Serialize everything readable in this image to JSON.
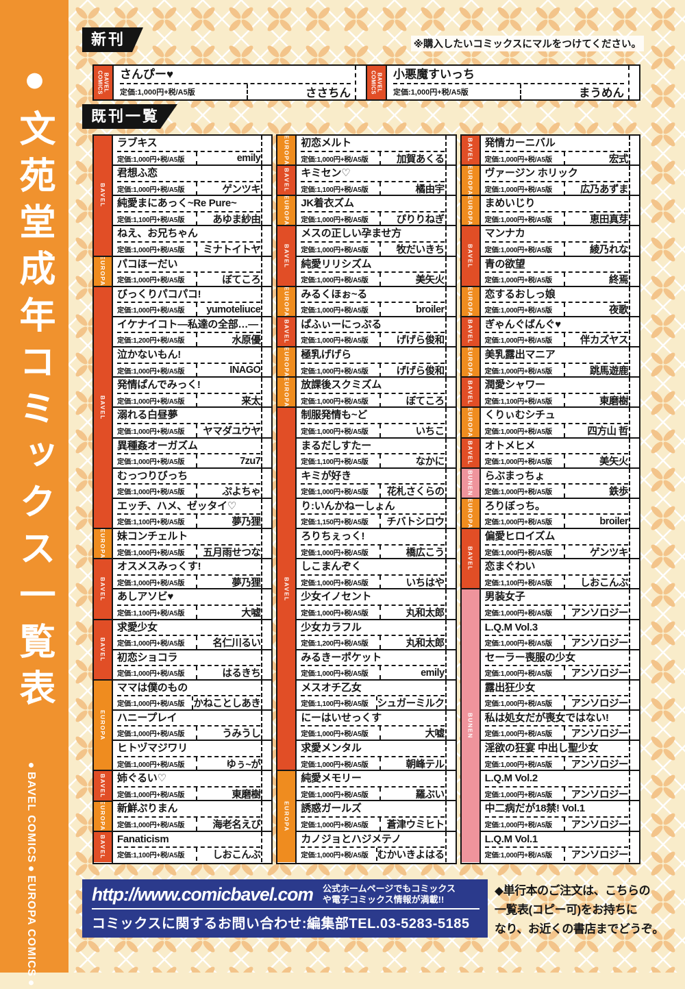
{
  "sidebar": {
    "title": "●文苑堂成年コミックス一覧表",
    "subtitle": "●BAVEL COMICS●EUROPA COMICS●"
  },
  "header": {
    "new_label": "新刊",
    "note": "※購入したいコミックスにマルをつけてください。",
    "backlist_label": "既刊一覧"
  },
  "new_releases": [
    {
      "tag": "BAVEL COMICS",
      "title": "さんぴー♥",
      "price": "定価:1,000円+税/A5版",
      "artist": "ささちん"
    },
    {
      "tag": "BAVEL COMICS",
      "title": "小悪魔すいっち",
      "price": "定価:1,000円+税/A5版",
      "artist": "まうめん"
    }
  ],
  "columns": [
    {
      "groups": [
        {
          "label": "BAVEL",
          "rows": 4
        },
        {
          "label": "EUROPA",
          "rows": 1
        },
        {
          "label": "BAVEL",
          "rows": 8
        },
        {
          "label": "EUROPA",
          "rows": 1
        },
        {
          "label": "BAVEL",
          "rows": 2
        },
        {
          "label": "BAVEL",
          "rows": 2
        },
        {
          "label": "EUROPA",
          "rows": 3
        },
        {
          "label": "BAVEL",
          "rows": 1
        },
        {
          "label": "EUROPA",
          "rows": 1
        },
        {
          "label": "BAVEL",
          "rows": 1
        }
      ],
      "entries": [
        {
          "title": "ラブキス",
          "price": "定価:1,000円+税/A5版",
          "artist": "emily"
        },
        {
          "title": "君想ふ恋",
          "price": "定価:1,000円+税/A5版",
          "artist": "ゲンツキ"
        },
        {
          "title": "純愛まにあっく~Re Pure~",
          "price": "定価:1,100円+税/A5版",
          "artist": "あゆま紗由"
        },
        {
          "title": "ねえ、お兄ちゃん",
          "price": "定価:1,000円+税/A5版",
          "artist": "ミナトイトヤ"
        },
        {
          "title": "パコほーだい",
          "price": "定価:1,000円+税/A5版",
          "artist": "ぼてころ"
        },
        {
          "title": "びっくりパコパコ!",
          "price": "定価:1,000円+税/A5版",
          "artist": "yumoteliuce"
        },
        {
          "title": "イケナイコト―私達の全部…―",
          "price": "定価:1,200円+税/A5版",
          "artist": "水原優"
        },
        {
          "title": "泣かないもん!",
          "price": "定価:1,000円+税/A5版",
          "artist": "INAGO"
        },
        {
          "title": "発情ぱんでみっく!",
          "price": "定価:1,000円+税/A5版",
          "artist": "来太"
        },
        {
          "title": "溺れる白昼夢",
          "price": "定価:1,000円+税/A5版",
          "artist": "ヤマダユウヤ"
        },
        {
          "title": "異種姦オーガズム",
          "price": "定価:1,000円+税/A5版",
          "artist": "7zu7"
        },
        {
          "title": "むっつりびっち",
          "price": "定価:1,000円+税/A5版",
          "artist": "ぷよちゃ"
        },
        {
          "title": "エッチ、ハメ、ゼッタイ♡",
          "price": "定価:1,100円+税/A5版",
          "artist": "夢乃狸"
        },
        {
          "title": "妹コンチェルト",
          "price": "定価:1,000円+税/A5版",
          "artist": "五月雨せつな"
        },
        {
          "title": "オスメスみっくす!",
          "price": "定価:1,000円+税/A5版",
          "artist": "夢乃狸"
        },
        {
          "title": "あしアソビ♥",
          "price": "定価:1,100円+税/A5版",
          "artist": "大嘘"
        },
        {
          "title": "求愛少女",
          "price": "定価:1,000円+税/A5版",
          "artist": "名仁川るい"
        },
        {
          "title": "初恋ショコラ",
          "price": "定価:1,000円+税/A5版",
          "artist": "はるきち"
        },
        {
          "title": "ママは僕のもの",
          "price": "定価:1,000円+税/A5版",
          "artist": "かねことしあき"
        },
        {
          "title": "ハニープレイ",
          "price": "定価:1,000円+税/A5版",
          "artist": "うみうし"
        },
        {
          "title": "ヒトヅマジワリ",
          "price": "定価:1,000円+税/A5版",
          "artist": "ゆぅ~が"
        },
        {
          "title": "姉ぐるい♡",
          "price": "定価:1,000円+税/A5版",
          "artist": "東磨樹"
        },
        {
          "title": "新鮮ぷりまん",
          "price": "定価:1,000円+税/A5版",
          "artist": "海老名えび"
        },
        {
          "title": "Fanaticism",
          "price": "定価:1,100円+税/A5版",
          "artist": "しおこんぶ"
        }
      ]
    },
    {
      "groups": [
        {
          "label": "EUROPA",
          "rows": 1
        },
        {
          "label": "BAVEL",
          "rows": 1
        },
        {
          "label": "EUROPA",
          "rows": 1
        },
        {
          "label": "BAVEL",
          "rows": 2
        },
        {
          "label": "EUROPA",
          "rows": 1
        },
        {
          "label": "BAVEL",
          "rows": 1
        },
        {
          "label": "EUROPA",
          "rows": 1
        },
        {
          "label": "EUROPA",
          "rows": 1
        },
        {
          "label": "BAVEL",
          "rows": 12
        },
        {
          "label": "EUROPA",
          "rows": 3
        }
      ],
      "entries": [
        {
          "title": "初恋メルト",
          "price": "定価:1,000円+税/A5版",
          "artist": "加賀あくる"
        },
        {
          "title": "キミセン♡",
          "price": "定価:1,100円+税/A5版",
          "artist": "橘由宇"
        },
        {
          "title": "JK着衣ズム",
          "price": "定価:1,000円+税/A5版",
          "artist": "ぴりりねぎ"
        },
        {
          "title": "メスの正しい孕ませ方",
          "price": "定価:1,000円+税/A5版",
          "artist": "牧だいきち"
        },
        {
          "title": "純愛リリシズム",
          "price": "定価:1,000円+税/A5版",
          "artist": "美矢火"
        },
        {
          "title": "みるくほぉ~る",
          "price": "定価:1,000円+税/A5版",
          "artist": "broiler"
        },
        {
          "title": "ぱふぃーにっぷる",
          "price": "定価:1,000円+税/A5版",
          "artist": "げげら俊和"
        },
        {
          "title": "極乳げげら",
          "price": "定価:1,000円+税/A5版",
          "artist": "げげら俊和"
        },
        {
          "title": "放課後スクミズム",
          "price": "定価:1,000円+税/A5版",
          "artist": "ぼてころ"
        },
        {
          "title": "制服発情も~ど",
          "price": "定価:1,000円+税/A5版",
          "artist": "いちこ"
        },
        {
          "title": "まるだしすたー",
          "price": "定価:1,100円+税/A5版",
          "artist": "なかに"
        },
        {
          "title": "キミが好き",
          "price": "定価:1,000円+税/A5版",
          "artist": "花札さくらの"
        },
        {
          "title": "り:いんかねーしょん",
          "price": "定価:1,150円+税/A5版",
          "artist": "チバトシロウ"
        },
        {
          "title": "ろりちぇっく!",
          "price": "定価:1,000円+税/A5版",
          "artist": "橋広こう"
        },
        {
          "title": "しこまんぞく",
          "price": "定価:1,000円+税/A5版",
          "artist": "いちはや"
        },
        {
          "title": "少女イノセント",
          "price": "定価:1,000円+税/A5版",
          "artist": "丸和太郎"
        },
        {
          "title": "少女カラフル",
          "price": "定価:1,200円+税/A5版",
          "artist": "丸和太郎"
        },
        {
          "title": "みるきーポケット",
          "price": "定価:1,000円+税/A5版",
          "artist": "emily"
        },
        {
          "title": "メスオチ乙女",
          "price": "定価:1,100円+税/A5版",
          "artist": "シュガーミルク"
        },
        {
          "title": "にーはいせっくす",
          "price": "定価:1,000円+税/A5版",
          "artist": "大嘘"
        },
        {
          "title": "求愛メンタル",
          "price": "定価:1,000円+税/A5版",
          "artist": "朝峰テル"
        },
        {
          "title": "純愛メモリー",
          "price": "定価:1,000円+税/A5版",
          "artist": "羅ぶい"
        },
        {
          "title": "誘惑ガールズ",
          "price": "定価:1,000円+税/A5版",
          "artist": "蒼津ウミヒト"
        },
        {
          "title": "カノジョとハジメテノ",
          "price": "定価:1,000円+税/A5版",
          "artist": "むかいきよはる"
        }
      ]
    },
    {
      "groups": [
        {
          "label": "BAVEL",
          "rows": 1
        },
        {
          "label": "EUROPA",
          "rows": 1
        },
        {
          "label": "EUROPA",
          "rows": 1
        },
        {
          "label": "BAVEL",
          "rows": 2
        },
        {
          "label": "EUROPA",
          "rows": 1
        },
        {
          "label": "BAVEL",
          "rows": 1
        },
        {
          "label": "EUROPA",
          "rows": 1
        },
        {
          "label": "BAVEL",
          "rows": 1
        },
        {
          "label": "EUROPA",
          "rows": 1
        },
        {
          "label": "BAVEL",
          "rows": 1
        },
        {
          "label": "BUNEN",
          "rows": 1
        },
        {
          "label": "EUROPA",
          "rows": 1
        },
        {
          "label": "BAVEL",
          "rows": 2
        },
        {
          "label": "BUNEN",
          "rows": 9
        }
      ],
      "entries": [
        {
          "title": "発情カーニバル",
          "price": "定価:1,000円+税/A5版",
          "artist": "宏式"
        },
        {
          "title": "ヴァージン ホリック",
          "price": "定価:1,000円+税/A5版",
          "artist": "広乃あずま"
        },
        {
          "title": "まめいじり",
          "price": "定価:1,000円+税/A5版",
          "artist": "恵田真芽"
        },
        {
          "title": "マンナカ",
          "price": "定価:1,000円+税/A5版",
          "artist": "綾乃れな"
        },
        {
          "title": "青の欲望",
          "price": "定価:1,000円+税/A5版",
          "artist": "終焉"
        },
        {
          "title": "恋するおしっ娘",
          "price": "定価:1,000円+税/A5版",
          "artist": "夜歌"
        },
        {
          "title": "ぎゃんぐばんぐ♥",
          "price": "定価:1,000円+税/A5版",
          "artist": "伴カズヤス"
        },
        {
          "title": "美乳露出マニア",
          "price": "定価:1,000円+税/A5版",
          "artist": "跳馬遊鹿"
        },
        {
          "title": "潤愛シャワー",
          "price": "定価:1,100円+税/A5版",
          "artist": "東磨樹"
        },
        {
          "title": "くりぃむシチュ",
          "price": "定価:1,000円+税/A5版",
          "artist": "四方山 哲"
        },
        {
          "title": "オトメヒメ",
          "price": "定価:1,000円+税/A5版",
          "artist": "美矢火"
        },
        {
          "title": "らぶまっちょ",
          "price": "定価:1,000円+税/A5版",
          "artist": "鉄歩"
        },
        {
          "title": "ろりぼっち。",
          "price": "定価:1,000円+税/A5版",
          "artist": "broiler"
        },
        {
          "title": "偏愛ヒロイズム",
          "price": "定価:1,000円+税/A5版",
          "artist": "ゲンツキ"
        },
        {
          "title": "恋まぐわい",
          "price": "定価:1,100円+税/A5版",
          "artist": "しおこんぶ"
        },
        {
          "title": "男装女子",
          "price": "定価:1,000円+税/A5版",
          "artist": "アンソロジー"
        },
        {
          "title": "L.Q.M Vol.3",
          "price": "定価:1,000円+税/A5版",
          "artist": "アンソロジー"
        },
        {
          "title": "セーラー喪服の少女",
          "price": "定価:1,000円+税/A5版",
          "artist": "アンソロジー"
        },
        {
          "title": "露出狂少女",
          "price": "定価:1,000円+税/A5版",
          "artist": "アンソロジー"
        },
        {
          "title": "私は処女だが喪女ではない!",
          "price": "定価:1,000円+税/A5版",
          "artist": "アンソロジー"
        },
        {
          "title": "淫欲の狂宴 中出し聖少女",
          "price": "定価:1,000円+税/A5版",
          "artist": "アンソロジー"
        },
        {
          "title": "L.Q.M Vol.2",
          "price": "定価:1,000円+税/A5版",
          "artist": "アンソロジー"
        },
        {
          "title": "中二病だが18禁! Vol.1",
          "price": "定価:1,000円+税/A5版",
          "artist": "アンソロジー"
        },
        {
          "title": "L.Q.M Vol.1",
          "price": "定価:1,000円+税/A5版",
          "artist": "アンソロジー"
        }
      ]
    }
  ],
  "footer": {
    "url": "http://www.comicbavel.com",
    "promo": "公式ホームページでもコミックス\nや電子コミックス情報が満載!!",
    "contact": "コミックスに関するお問い合わせ:編集部TEL.03-5283-5185",
    "order_note": "◆単行本のご注文は、こちらの\n一覧表(コピー可)をお持ちに\nなり、お近くの書店までどうぞ。"
  },
  "colors": {
    "bavel": "#e14e26",
    "europa": "#ef8c1f",
    "bunen": "#ef949c",
    "sidebar": "#f0922e",
    "footer_blue": "#2b3a8c",
    "page_bg": "#f9ecca",
    "pattern_petal": "#f3c48a"
  }
}
